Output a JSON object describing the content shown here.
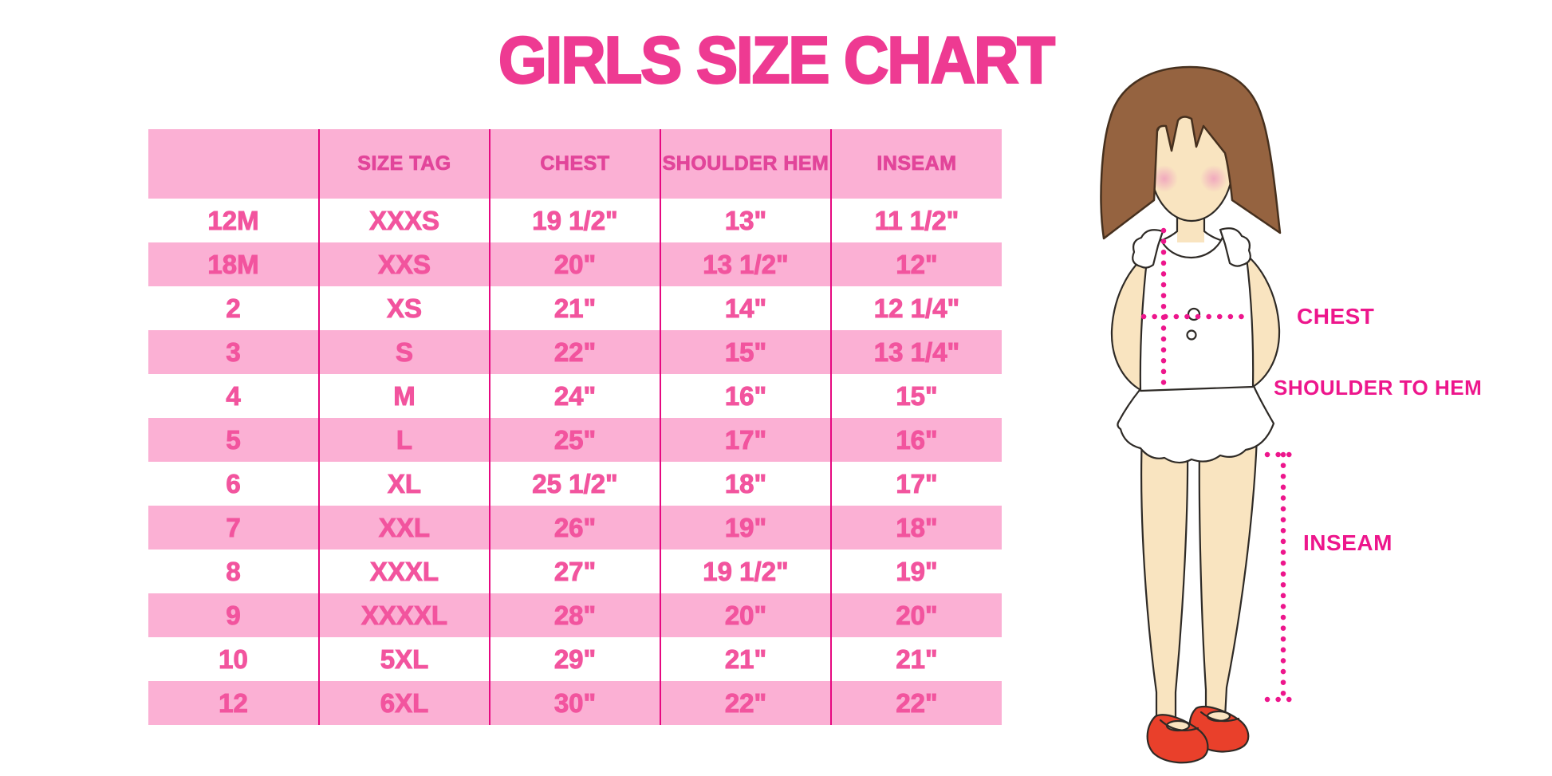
{
  "title": "GIRLS SIZE CHART",
  "colors": {
    "title_pink": "#EE3A92",
    "magenta_line": "#E60880",
    "row_pink": "#FBB0D4",
    "header_text": "#E2459A",
    "cell_text": "#F2549E",
    "label_magenta": "#ED168C",
    "hair_brown": "#956340",
    "skin": "#F9E4C0",
    "blush": "#F0A3BE",
    "shoe_red": "#E9402B",
    "outline": "#2E2A26"
  },
  "chart_data": {
    "type": "table",
    "title": "GIRLS SIZE CHART",
    "columns": [
      "",
      "SIZE TAG",
      "CHEST",
      "SHOULDER HEM",
      "INSEAM"
    ],
    "rows": [
      [
        "12M",
        "XXXS",
        "19 1/2\"",
        "13\"",
        "11 1/2\""
      ],
      [
        "18M",
        "XXS",
        "20\"",
        "13 1/2\"",
        "12\""
      ],
      [
        "2",
        "XS",
        "21\"",
        "14\"",
        "12 1/4\""
      ],
      [
        "3",
        "S",
        "22\"",
        "15\"",
        "13 1/4\""
      ],
      [
        "4",
        "M",
        "24\"",
        "16\"",
        "15\""
      ],
      [
        "5",
        "L",
        "25\"",
        "17\"",
        "16\""
      ],
      [
        "6",
        "XL",
        "25 1/2\"",
        "18\"",
        "17\""
      ],
      [
        "7",
        "XXL",
        "26\"",
        "19\"",
        "18\""
      ],
      [
        "8",
        "XXXL",
        "27\"",
        "19 1/2\"",
        "19\""
      ],
      [
        "9",
        "XXXXL",
        "28\"",
        "20\"",
        "20\""
      ],
      [
        "10",
        "5XL",
        "29\"",
        "21\"",
        "21\""
      ],
      [
        "12",
        "6XL",
        "30\"",
        "22\"",
        "22\""
      ]
    ],
    "legend_position": "none",
    "grid": "column-dividers-only",
    "row_striping": "white/pink alternating"
  },
  "figure": {
    "labels": {
      "chest": "CHEST",
      "shoulder_to_hem": "SHOULDER TO HEM",
      "inseam": "INSEAM"
    }
  }
}
